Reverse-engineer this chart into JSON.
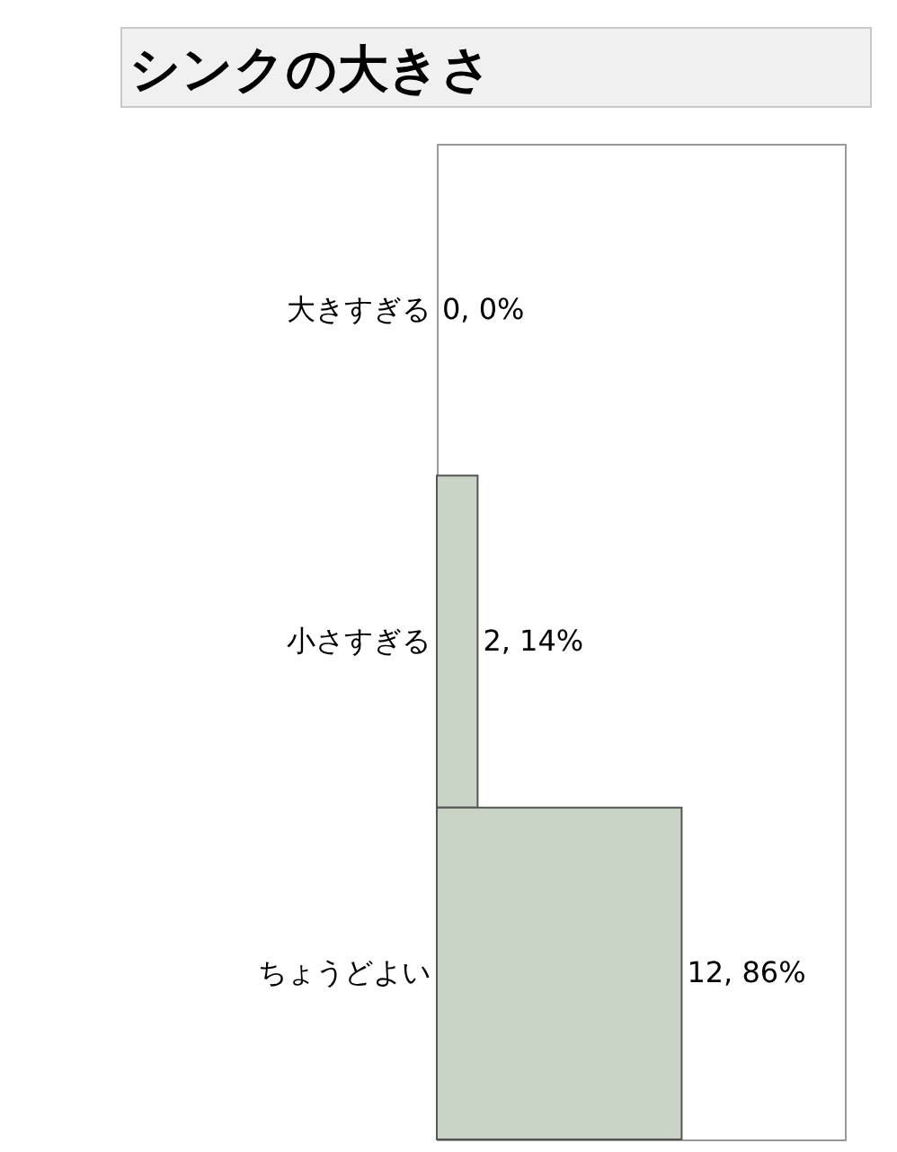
{
  "chart_data": {
    "type": "bar",
    "orientation": "horizontal",
    "title": "シンクの大きさ",
    "categories": [
      "大きすぎる",
      "小さすぎる",
      "ちょうどよい"
    ],
    "values": [
      0,
      2,
      12
    ],
    "value_labels": [
      "0, 0%",
      "2, 14%",
      "12, 86%"
    ],
    "color": "#c9d3c6",
    "xlim": [
      0,
      20
    ],
    "grid": false
  }
}
